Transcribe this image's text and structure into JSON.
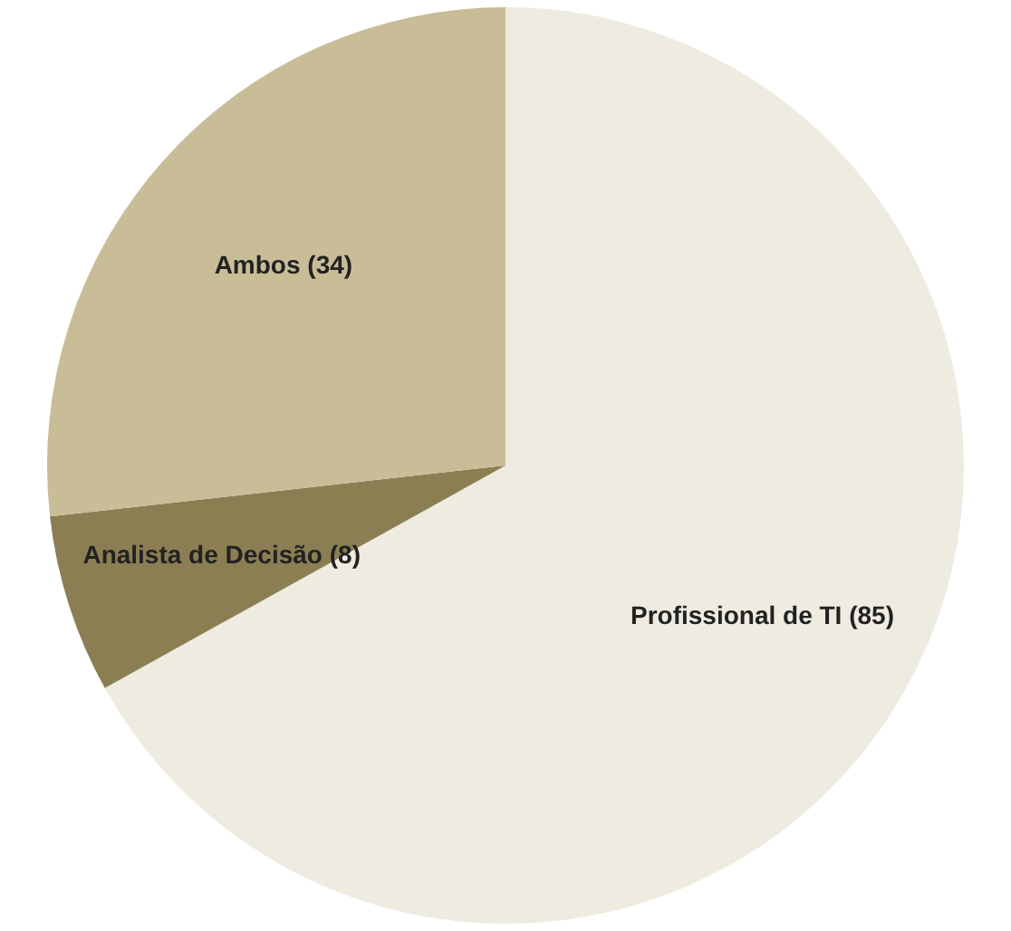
{
  "chart_data": {
    "type": "pie",
    "categories": [
      "Profissional de TI (85)",
      "Analista de Decisão (8)",
      "Ambos (34)"
    ],
    "values": [
      85,
      8,
      34
    ],
    "colors": [
      "#eeebe0",
      "#8c7e53",
      "#c9bd98"
    ],
    "legend": false
  }
}
